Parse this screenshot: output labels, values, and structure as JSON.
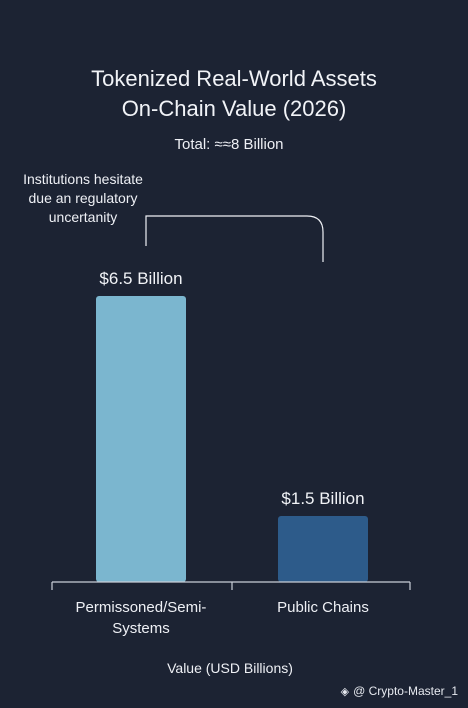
{
  "chart_data": {
    "type": "bar",
    "title_lines": [
      "Tokenized Real-World Assets",
      "On-Chain Value (2026)"
    ],
    "subtitle": "Total: ≈≈8 Billion",
    "categories": [
      "Permissoned/Semi-Systems",
      "Public Chains"
    ],
    "category_label_lines": [
      [
        "Permissoned/Semi-",
        "Systems"
      ],
      [
        "Public Chains"
      ]
    ],
    "values": [
      6.5,
      1.5
    ],
    "value_labels": [
      "$6.5 Billion",
      "$1.5 Billion"
    ],
    "bar_colors": [
      "#7bb6cf",
      "#2d5b8a"
    ],
    "xlabel": "Value (USD Billions)",
    "ylabel": "",
    "grid": false,
    "annotation": {
      "lines": [
        "Institutions hesitate",
        "due an regulatory",
        "uncertanity"
      ],
      "connects": [
        "$6.5 Billion",
        "$1.5 Billion"
      ]
    }
  },
  "watermark": {
    "icon": "binance-square-icon",
    "text": "@ Crypto-Master_1"
  },
  "colors": {
    "background": "#1c2333",
    "text": "#eef0f5",
    "axis": "#c9ced8"
  }
}
